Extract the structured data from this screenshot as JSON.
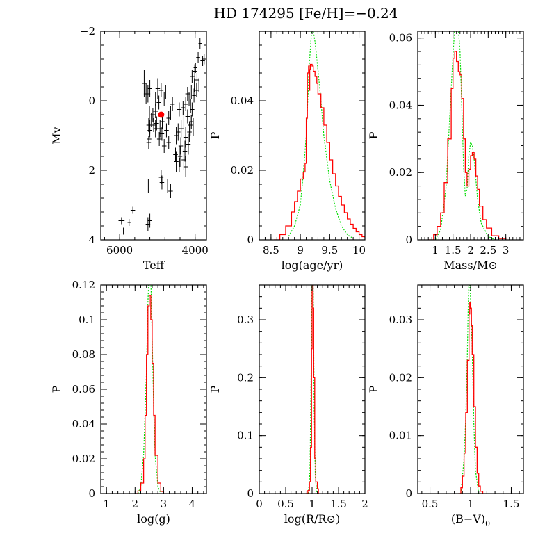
{
  "figure_title": "HD 174295   [Fe/H]=−0.24",
  "colors": {
    "model": "#ff0000",
    "alt_model": "#00dd00",
    "points": "#000000",
    "star": "#ff0000"
  },
  "chart_data": [
    {
      "id": "hr",
      "type": "scatter",
      "title": "",
      "xlabel": "Teff",
      "ylabel": "Mv",
      "xlim": [
        6500,
        3700
      ],
      "ylim": [
        4,
        -2
      ],
      "xticks": [
        6000,
        4000
      ],
      "yticks": [
        -2,
        0,
        2,
        4
      ],
      "xticklabels": [
        "6000",
        "4000"
      ],
      "yticklabels": [
        "−2",
        "0",
        "2",
        "4"
      ],
      "points": [
        [
          3870,
          -1.65,
          40,
          0.15
        ],
        [
          3800,
          -1.15,
          60,
          0.15
        ],
        [
          3760,
          -1.2,
          50,
          0.15
        ],
        [
          3920,
          -1.25,
          50,
          0.15
        ],
        [
          3990,
          -0.95,
          50,
          0.15
        ],
        [
          4010,
          -0.85,
          50,
          0.2
        ],
        [
          4080,
          -0.7,
          60,
          0.2
        ],
        [
          3950,
          -0.6,
          60,
          0.2
        ],
        [
          4020,
          -0.45,
          50,
          0.2
        ],
        [
          3900,
          -0.45,
          60,
          0.2
        ],
        [
          3960,
          -0.3,
          50,
          0.2
        ],
        [
          4100,
          -0.25,
          60,
          0.2
        ],
        [
          4030,
          -0.15,
          50,
          0.2
        ],
        [
          4200,
          -0.2,
          60,
          0.2
        ],
        [
          4160,
          -0.05,
          60,
          0.2
        ],
        [
          4250,
          0.1,
          60,
          0.2
        ],
        [
          4120,
          0.15,
          60,
          0.2
        ],
        [
          4080,
          0.25,
          60,
          0.2
        ],
        [
          4320,
          0.2,
          50,
          0.2
        ],
        [
          4420,
          0.25,
          60,
          0.2
        ],
        [
          4600,
          0.1,
          60,
          0.2
        ],
        [
          4200,
          0.45,
          60,
          0.2
        ],
        [
          4100,
          0.6,
          60,
          0.2
        ],
        [
          4130,
          0.7,
          60,
          0.3
        ],
        [
          4050,
          0.75,
          60,
          0.25
        ],
        [
          4300,
          0.55,
          60,
          0.25
        ],
        [
          4150,
          0.9,
          60,
          0.3
        ],
        [
          4370,
          0.8,
          60,
          0.25
        ],
        [
          4450,
          0.9,
          60,
          0.25
        ],
        [
          4500,
          1.0,
          60,
          0.25
        ],
        [
          4250,
          1.05,
          60,
          0.3
        ],
        [
          4180,
          1.25,
          60,
          0.3
        ],
        [
          4380,
          1.3,
          60,
          0.25
        ],
        [
          4270,
          1.45,
          60,
          0.3
        ],
        [
          4400,
          1.6,
          60,
          0.3
        ],
        [
          4500,
          1.75,
          60,
          0.3
        ],
        [
          4300,
          1.7,
          60,
          0.3
        ],
        [
          4250,
          1.9,
          60,
          0.3
        ],
        [
          4420,
          1.85,
          60,
          0.2
        ],
        [
          4520,
          1.55,
          60,
          0.2
        ],
        [
          4700,
          1.2,
          60,
          0.2
        ],
        [
          4820,
          1.3,
          60,
          0.2
        ],
        [
          4950,
          1.1,
          60,
          0.2
        ],
        [
          4880,
          0.95,
          60,
          0.2
        ],
        [
          4760,
          0.85,
          60,
          0.2
        ],
        [
          4930,
          0.8,
          60,
          0.25
        ],
        [
          5050,
          0.8,
          60,
          0.25
        ],
        [
          5200,
          0.75,
          60,
          0.2
        ],
        [
          5100,
          0.7,
          60,
          0.2
        ],
        [
          5020,
          0.65,
          60,
          0.2
        ],
        [
          4870,
          0.6,
          60,
          0.2
        ],
        [
          5160,
          0.55,
          60,
          0.2
        ],
        [
          5230,
          0.7,
          60,
          0.2
        ],
        [
          5120,
          0.4,
          60,
          0.2
        ],
        [
          5050,
          0.3,
          60,
          0.2
        ],
        [
          4980,
          0.35,
          60,
          0.2
        ],
        [
          5210,
          0.35,
          60,
          0.2
        ],
        [
          5200,
          0.85,
          60,
          0.2
        ],
        [
          5220,
          1.1,
          60,
          0.2
        ],
        [
          5230,
          1.2,
          60,
          0.2
        ],
        [
          4700,
          0.5,
          60,
          0.2
        ],
        [
          4650,
          0.35,
          60,
          0.2
        ],
        [
          4780,
          -0.25,
          60,
          0.2
        ],
        [
          4820,
          -0.05,
          60,
          0.2
        ],
        [
          4990,
          -0.35,
          60,
          0.3
        ],
        [
          5050,
          -0.05,
          60,
          0.2
        ],
        [
          5200,
          -0.35,
          60,
          0.25
        ],
        [
          5250,
          -0.2,
          60,
          0.25
        ],
        [
          5350,
          -0.5,
          60,
          0.4
        ],
        [
          5300,
          -0.2,
          60,
          0.3
        ],
        [
          4960,
          0.05,
          60,
          0.2
        ],
        [
          4900,
          -0.3,
          60,
          0.2
        ],
        [
          4900,
          2.2,
          60,
          0.2
        ],
        [
          4880,
          2.35,
          60,
          0.2
        ],
        [
          4730,
          2.45,
          60,
          0.2
        ],
        [
          4650,
          2.6,
          60,
          0.2
        ],
        [
          5240,
          2.45,
          60,
          0.2
        ],
        [
          5200,
          3.45,
          60,
          0.2
        ],
        [
          5250,
          3.55,
          60,
          0.2
        ],
        [
          5650,
          3.15,
          60,
          0.1
        ],
        [
          5950,
          3.45,
          80,
          0.1
        ],
        [
          5900,
          3.75,
          60,
          0.1
        ],
        [
          5750,
          3.5,
          40,
          0.1
        ]
      ],
      "star": [
        4900,
        0.4
      ]
    },
    {
      "id": "age",
      "type": "line",
      "title": "",
      "xlabel": "log(age/yr)",
      "ylabel": "P",
      "xlim": [
        8.3,
        10.1
      ],
      "ylim": [
        0,
        0.06
      ],
      "xticks": [
        8.5,
        9,
        9.5,
        10
      ],
      "yticks": [
        0,
        0.02,
        0.04
      ],
      "xticklabels": [
        "8.5",
        "9",
        "9.5",
        "10"
      ],
      "yticklabels": [
        "0",
        "0.02",
        "0.04"
      ],
      "series": [
        {
          "x": [
            8.55,
            8.65,
            8.75,
            8.85,
            8.9,
            8.95,
            9.0,
            9.05,
            9.08,
            9.1,
            9.12,
            9.14,
            9.15,
            9.16,
            9.17,
            9.18,
            9.2,
            9.22,
            9.25,
            9.28,
            9.3,
            9.35,
            9.4,
            9.45,
            9.5,
            9.55,
            9.6,
            9.65,
            9.7,
            9.75,
            9.8,
            9.85,
            9.9,
            9.95,
            10.0,
            10.05,
            10.1
          ],
          "y": [
            0,
            0.0015,
            0.004,
            0.008,
            0.011,
            0.014,
            0.0175,
            0.0195,
            0.022,
            0.035,
            0.048,
            0.05,
            0.043,
            0.049,
            0.0505,
            0.0505,
            0.05,
            0.0485,
            0.047,
            0.045,
            0.042,
            0.038,
            0.033,
            0.028,
            0.023,
            0.019,
            0.0155,
            0.0125,
            0.01,
            0.0078,
            0.006,
            0.0045,
            0.0033,
            0.0023,
            0.0015,
            0.0009,
            0.0005
          ]
        },
        {
          "x": [
            8.8,
            8.9,
            9.0,
            9.05,
            9.1,
            9.15,
            9.2,
            9.22,
            9.25,
            9.3,
            9.35,
            9.4,
            9.5,
            9.6,
            9.7,
            9.8,
            9.9
          ],
          "y": [
            0.001,
            0.004,
            0.01,
            0.019,
            0.03,
            0.05,
            0.062,
            0.06,
            0.057,
            0.049,
            0.04,
            0.03,
            0.017,
            0.009,
            0.004,
            0.0015,
            0.0004
          ]
        }
      ]
    },
    {
      "id": "mass",
      "type": "line",
      "title": "",
      "xlabel": "Mass/M⊙",
      "ylabel": "P",
      "xlim": [
        0.5,
        3.5
      ],
      "ylim": [
        0,
        0.062
      ],
      "xticks": [
        1,
        1.5,
        2,
        2.5,
        3
      ],
      "yticks": [
        0,
        0.02,
        0.04,
        0.06
      ],
      "xticklabels": [
        "1",
        "1.5",
        "2",
        "2.5",
        "3"
      ],
      "yticklabels": [
        "0",
        "0.02",
        "0.04",
        "0.06"
      ],
      "series": [
        {
          "x": [
            0.8,
            0.95,
            1.05,
            1.15,
            1.25,
            1.35,
            1.45,
            1.5,
            1.55,
            1.6,
            1.65,
            1.7,
            1.75,
            1.8,
            1.85,
            1.9,
            1.95,
            2.0,
            2.05,
            2.1,
            2.15,
            2.2,
            2.25,
            2.35,
            2.45,
            2.6,
            2.8,
            3.0
          ],
          "y": [
            0,
            0.0015,
            0.004,
            0.008,
            0.017,
            0.03,
            0.045,
            0.054,
            0.056,
            0.053,
            0.05,
            0.049,
            0.042,
            0.03,
            0.02,
            0.016,
            0.021,
            0.025,
            0.026,
            0.024,
            0.019,
            0.015,
            0.01,
            0.006,
            0.0035,
            0.0012,
            0.0004,
            0
          ]
        },
        {
          "x": [
            1.0,
            1.15,
            1.3,
            1.4,
            1.5,
            1.55,
            1.6,
            1.65,
            1.7,
            1.75,
            1.8,
            1.85,
            1.9,
            1.95,
            2.0,
            2.05,
            2.1,
            2.2,
            2.3,
            2.5,
            2.7
          ],
          "y": [
            0,
            0.003,
            0.015,
            0.035,
            0.055,
            0.063,
            0.062,
            0.063,
            0.056,
            0.04,
            0.022,
            0.013,
            0.015,
            0.025,
            0.029,
            0.028,
            0.024,
            0.012,
            0.005,
            0.001,
            0
          ]
        }
      ]
    },
    {
      "id": "logg",
      "type": "line",
      "title": "",
      "xlabel": "log(g)",
      "ylabel": "P",
      "xlim": [
        0.8,
        4.5
      ],
      "ylim": [
        0,
        0.12
      ],
      "xticks": [
        1,
        2,
        3,
        4
      ],
      "yticks": [
        0,
        0.02,
        0.04,
        0.06,
        0.08,
        0.1,
        0.12
      ],
      "xticklabels": [
        "1",
        "2",
        "3",
        "4"
      ],
      "yticklabels": [
        "0",
        "0.02",
        "0.04",
        "0.06",
        "0.08",
        "0.1",
        "0.12"
      ],
      "series": [
        {
          "x": [
            2.0,
            2.1,
            2.2,
            2.3,
            2.35,
            2.4,
            2.45,
            2.5,
            2.55,
            2.6,
            2.65,
            2.7,
            2.8,
            2.9,
            3.0
          ],
          "y": [
            0,
            0.0015,
            0.006,
            0.02,
            0.045,
            0.08,
            0.108,
            0.114,
            0.1,
            0.075,
            0.045,
            0.022,
            0.006,
            0.0012,
            0
          ]
        },
        {
          "x": [
            2.1,
            2.2,
            2.3,
            2.4,
            2.45,
            2.5,
            2.55,
            2.6,
            2.65,
            2.7,
            2.8,
            2.9
          ],
          "y": [
            0,
            0.004,
            0.022,
            0.07,
            0.11,
            0.13,
            0.125,
            0.09,
            0.05,
            0.022,
            0.004,
            0
          ]
        }
      ]
    },
    {
      "id": "logr",
      "type": "line",
      "title": "",
      "xlabel": "log(R/R⊙)",
      "ylabel": "P",
      "xlim": [
        0,
        2
      ],
      "ylim": [
        0,
        0.36
      ],
      "xticks": [
        0,
        0.5,
        1,
        1.5,
        2
      ],
      "yticks": [
        0,
        0.1,
        0.2,
        0.3
      ],
      "xticklabels": [
        "0",
        "0.5",
        "1",
        "1.5",
        "2"
      ],
      "yticklabels": [
        "0",
        "0.1",
        "0.2",
        "0.3"
      ],
      "series": [
        {
          "x": [
            0.88,
            0.92,
            0.95,
            0.97,
            0.99,
            1.0,
            1.01,
            1.02,
            1.03,
            1.05,
            1.07,
            1.1,
            1.12
          ],
          "y": [
            0,
            0.005,
            0.02,
            0.08,
            0.25,
            0.36,
            0.36,
            0.32,
            0.2,
            0.06,
            0.02,
            0.008,
            0
          ]
        },
        {
          "x": [
            0.93,
            0.96,
            0.98,
            1.0,
            1.01,
            1.02,
            1.04,
            1.06,
            1.09
          ],
          "y": [
            0,
            0.04,
            0.2,
            0.4,
            0.42,
            0.38,
            0.15,
            0.03,
            0
          ]
        }
      ]
    },
    {
      "id": "bv",
      "type": "line",
      "title": "",
      "xlabel": "(B−V)",
      "xlabel_sub": "0",
      "ylabel": "P",
      "xlim": [
        0.35,
        1.65
      ],
      "ylim": [
        0,
        0.036
      ],
      "xticks": [
        0.5,
        1,
        1.5
      ],
      "yticks": [
        0,
        0.01,
        0.02,
        0.03
      ],
      "xticklabels": [
        "0.5",
        "1",
        "1.5"
      ],
      "yticklabels": [
        "0",
        "0.01",
        "0.02",
        "0.03"
      ],
      "series": [
        {
          "x": [
            0.85,
            0.88,
            0.9,
            0.92,
            0.94,
            0.96,
            0.98,
            0.99,
            1.0,
            1.01,
            1.02,
            1.04,
            1.06,
            1.08,
            1.1,
            1.12,
            1.15
          ],
          "y": [
            0,
            0.001,
            0.003,
            0.007,
            0.014,
            0.023,
            0.031,
            0.033,
            0.032,
            0.029,
            0.024,
            0.015,
            0.008,
            0.0035,
            0.0013,
            0.0004,
            0
          ]
        },
        {
          "x": [
            0.88,
            0.92,
            0.94,
            0.96,
            0.97,
            0.98,
            0.99,
            1.0,
            1.02,
            1.04,
            1.06,
            1.1
          ],
          "y": [
            0,
            0.006,
            0.013,
            0.024,
            0.032,
            0.037,
            0.036,
            0.034,
            0.025,
            0.012,
            0.004,
            0
          ]
        }
      ]
    }
  ]
}
